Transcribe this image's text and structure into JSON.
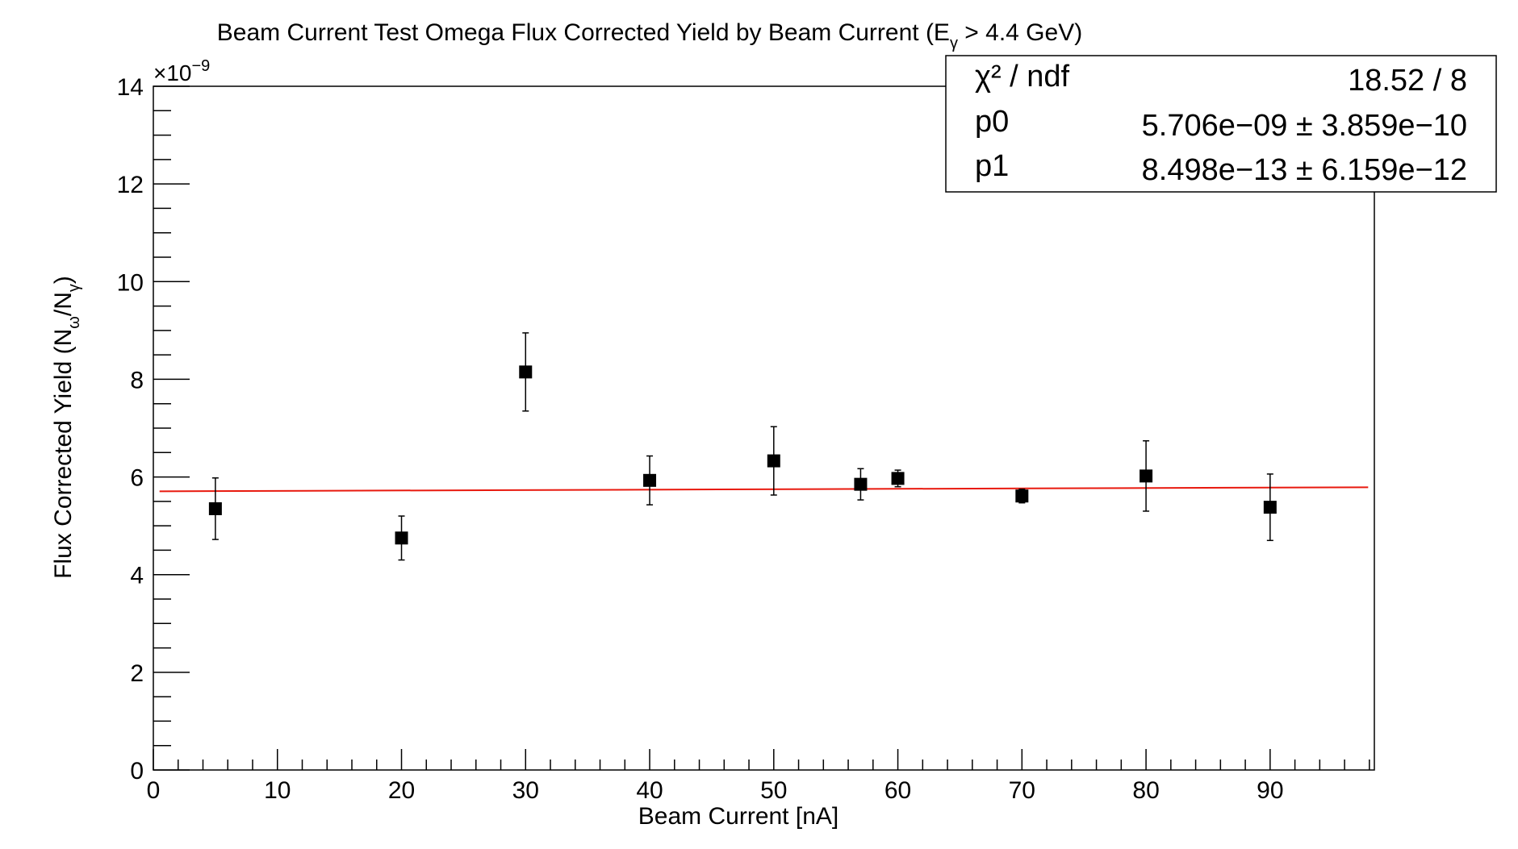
{
  "chart_data": {
    "type": "scatter",
    "title_main": "Beam Current Test Omega Flux Corrected Yield by Beam Current (E",
    "title_sub": "γ",
    "title_rest": " > 4.4 GeV)",
    "xlabel": "Beam Current [nA]",
    "ylabel_main": "Flux Corrected Yield (N",
    "ylabel_sub1": "ω",
    "ylabel_mid": "/N",
    "ylabel_sub2": "γ",
    "ylabel_end": ")",
    "y_exponent_label": "×10",
    "y_exponent_power": "−9",
    "xlim": [
      0,
      98.4
    ],
    "ylim": [
      0,
      14
    ],
    "x_ticks": [
      0,
      10,
      20,
      30,
      40,
      50,
      60,
      70,
      80,
      90
    ],
    "x_tick_labels": [
      "0",
      "10",
      "20",
      "30",
      "40",
      "50",
      "60",
      "70",
      "80",
      "90"
    ],
    "y_ticks": [
      0,
      2,
      4,
      6,
      8,
      10,
      12,
      14
    ],
    "y_tick_labels": [
      "0",
      "2",
      "4",
      "6",
      "8",
      "10",
      "12",
      "14"
    ],
    "grid": false,
    "series": [
      {
        "marker": "square",
        "color": "#000000",
        "x": [
          5,
          20,
          30,
          40,
          50,
          57,
          60,
          70,
          80,
          90
        ],
        "y": [
          5.35,
          4.75,
          8.15,
          5.93,
          6.33,
          5.85,
          5.97,
          5.61,
          6.02,
          5.38
        ],
        "y_err": [
          0.63,
          0.45,
          0.8,
          0.5,
          0.7,
          0.32,
          0.17,
          0.14,
          0.72,
          0.68
        ]
      }
    ],
    "fit": {
      "color": "#e8190e",
      "p0": 5.706,
      "p1": 0.00085,
      "x_range": [
        0.5,
        97.9
      ]
    },
    "stats_box": {
      "position": "top-right",
      "rows": [
        {
          "label": "χ² / ndf",
          "value": "18.52 / 8"
        },
        {
          "label": "p0",
          "value": "5.706e−09 ± 3.859e−10"
        },
        {
          "label": "p1",
          "value": "8.498e−13 ± 6.159e−12"
        }
      ]
    }
  }
}
